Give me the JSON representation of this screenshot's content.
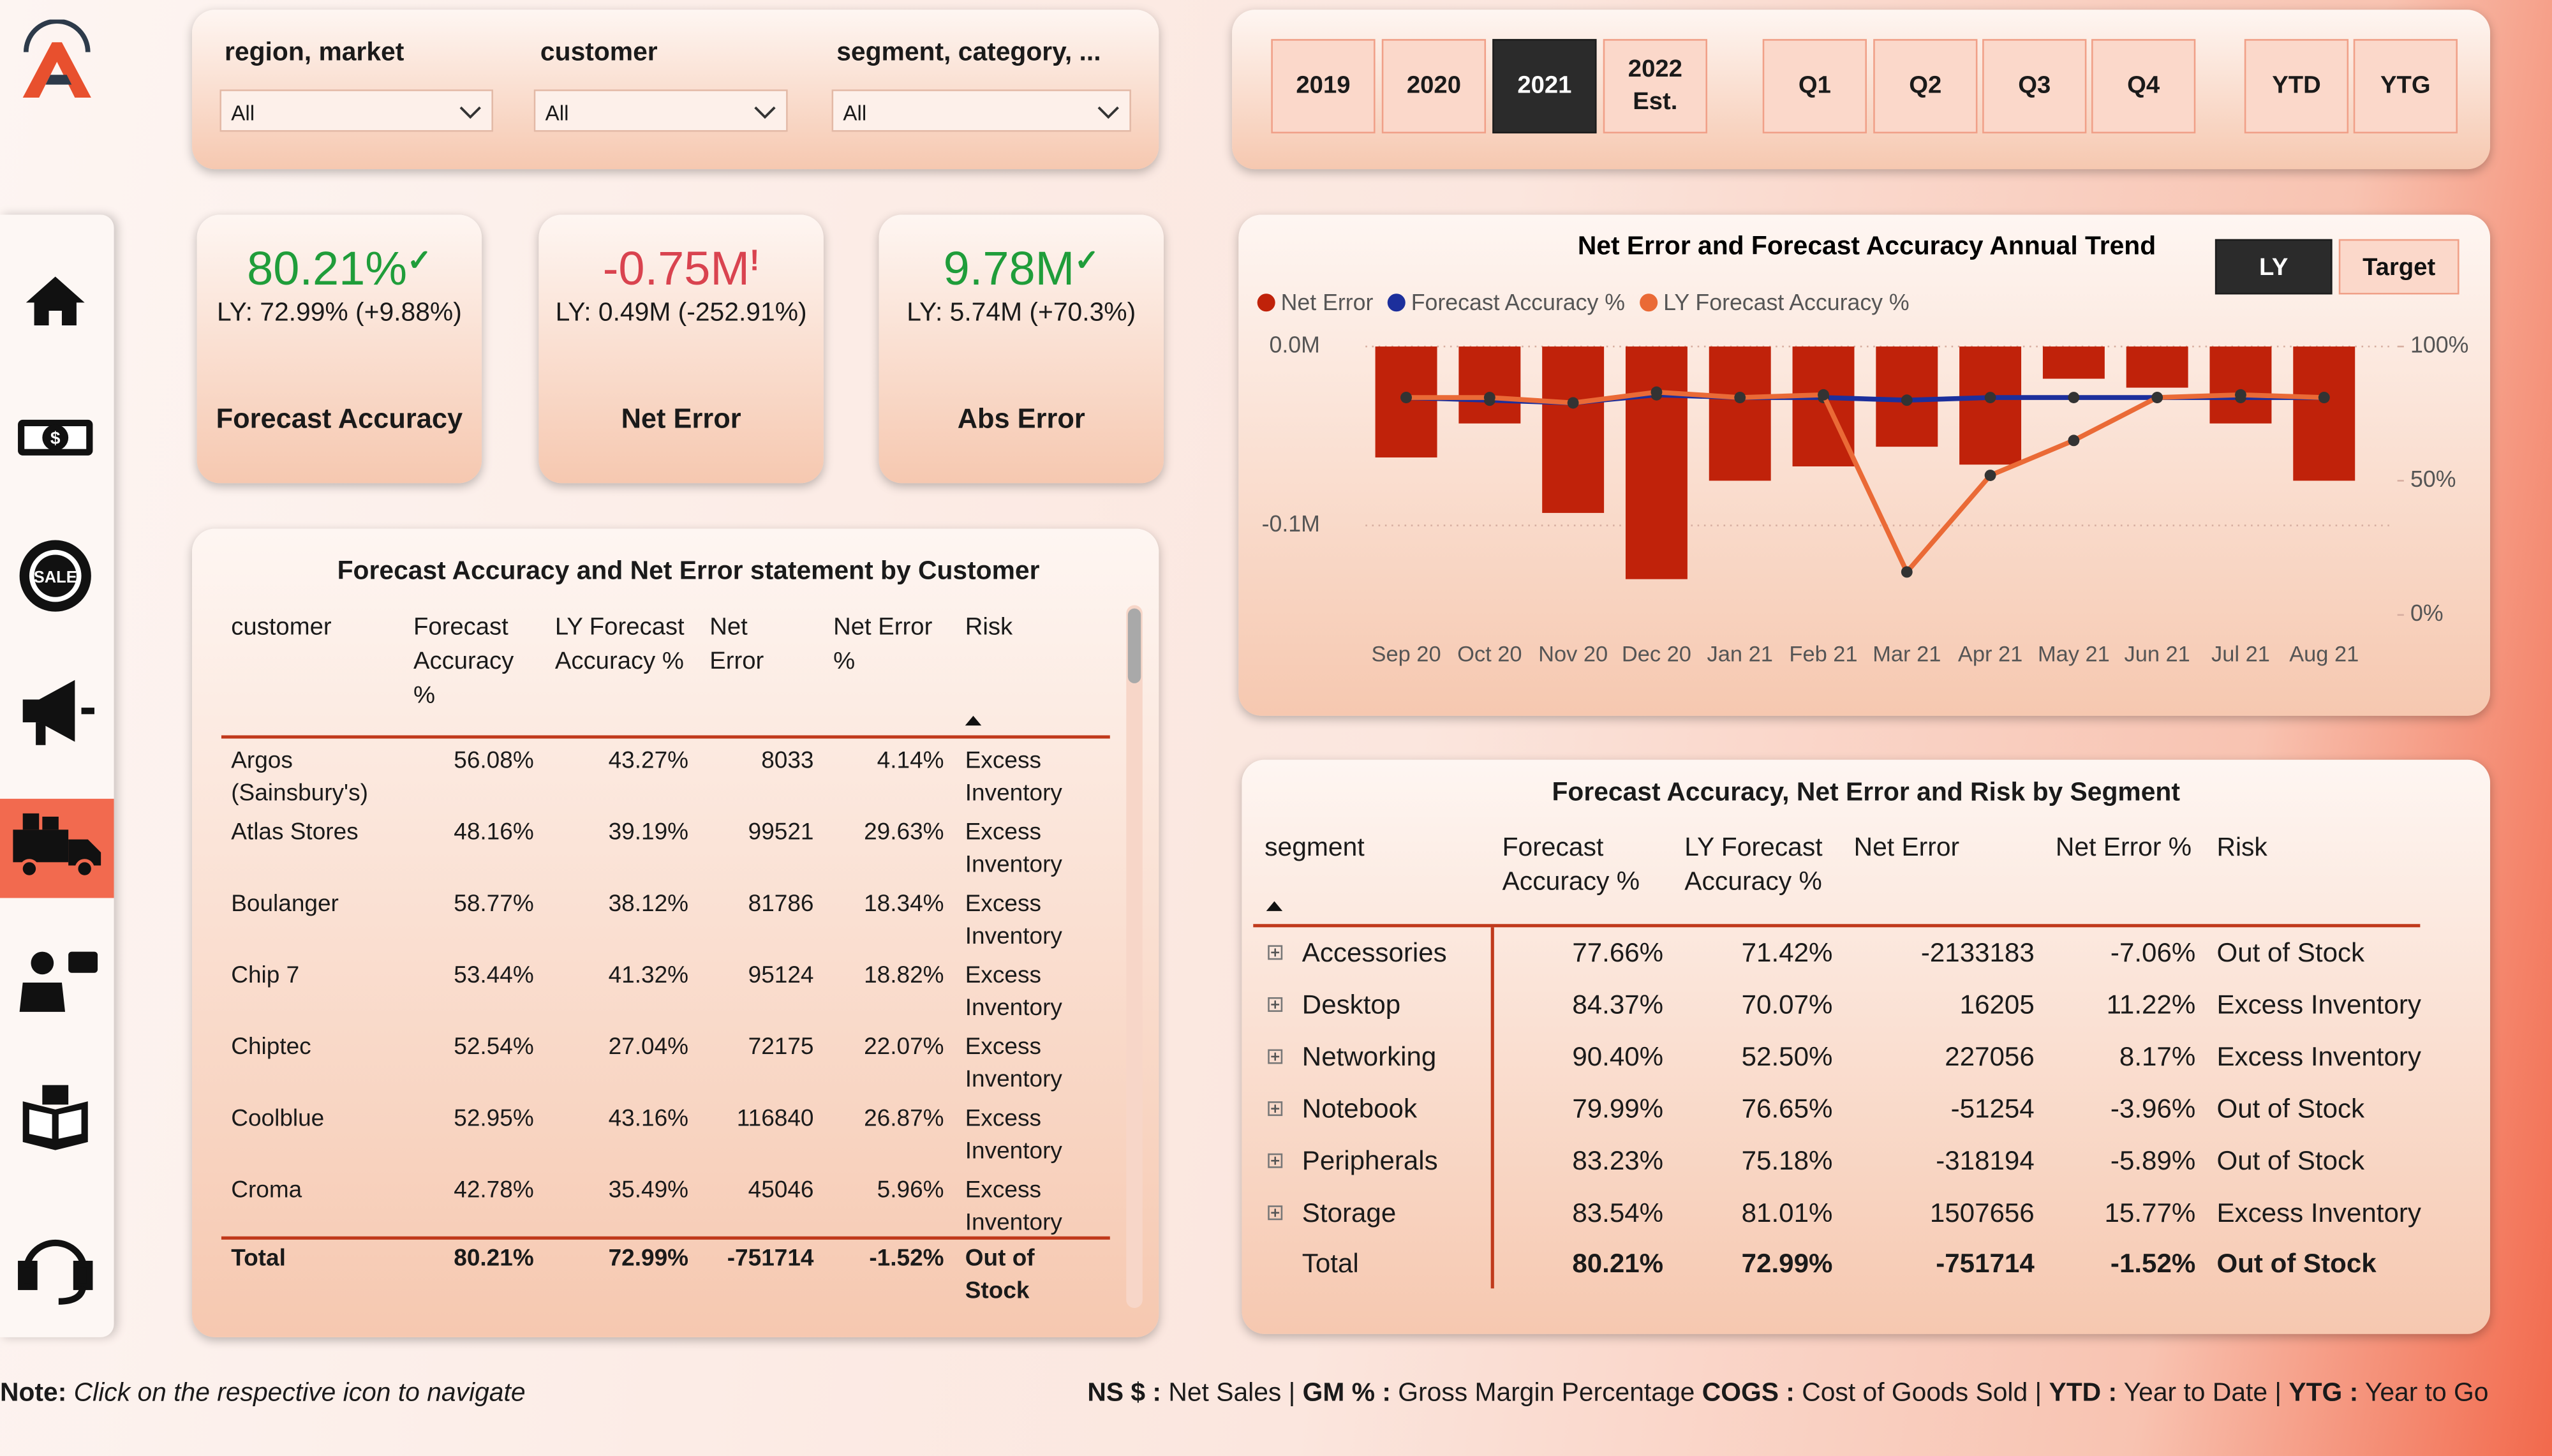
{
  "filters": [
    {
      "label": "region, market",
      "value": "All"
    },
    {
      "label": "customer",
      "value": "All"
    },
    {
      "label": "segment, category, ...",
      "value": "All"
    }
  ],
  "period_buttons": [
    {
      "label": "2019"
    },
    {
      "label": "2020"
    },
    {
      "label": "2021",
      "selected": true
    },
    {
      "label": "2022 Est."
    },
    {
      "label": "Q1"
    },
    {
      "label": "Q2"
    },
    {
      "label": "Q3"
    },
    {
      "label": "Q4"
    },
    {
      "label": "YTD"
    },
    {
      "label": "YTG"
    }
  ],
  "kpis": [
    {
      "value": "80.21%",
      "icon": "✓",
      "color": "#1f9d3a",
      "comparison": "LY: 72.99% (+9.88%)",
      "label": "Forecast Accuracy"
    },
    {
      "value": "-0.75M",
      "icon": "!",
      "color": "#d9434f",
      "comparison": "LY: 0.49M (-252.91%)",
      "label": "Net Error"
    },
    {
      "value": "9.78M",
      "icon": "✓",
      "color": "#1f9d3a",
      "comparison": "LY: 5.74M (+70.3%)",
      "label": "Abs Error"
    }
  ],
  "customer_table": {
    "title": "Forecast Accuracy and Net Error statement  by Customer",
    "columns": [
      "customer",
      "Forecast Accuracy %",
      "LY Forecast Accuracy %",
      "Net Error",
      "Net Error %",
      "Risk"
    ],
    "rows": [
      [
        "Argos (Sainsbury's)",
        "56.08%",
        "43.27%",
        "8033",
        "4.14%",
        "Excess Inventory"
      ],
      [
        "Atlas Stores",
        "48.16%",
        "39.19%",
        "99521",
        "29.63%",
        "Excess Inventory"
      ],
      [
        "Boulanger",
        "58.77%",
        "38.12%",
        "81786",
        "18.34%",
        "Excess Inventory"
      ],
      [
        "Chip 7",
        "53.44%",
        "41.32%",
        "95124",
        "18.82%",
        "Excess Inventory"
      ],
      [
        "Chiptec",
        "52.54%",
        "27.04%",
        "72175",
        "22.07%",
        "Excess Inventory"
      ],
      [
        "Coolblue",
        "52.95%",
        "43.16%",
        "116840",
        "26.87%",
        "Excess Inventory"
      ],
      [
        "Croma",
        "42.78%",
        "35.49%",
        "45046",
        "5.96%",
        "Excess Inventory"
      ]
    ],
    "total": [
      "Total",
      "80.21%",
      "72.99%",
      "-751714",
      "-1.52%",
      "Out of Stock"
    ]
  },
  "chart_toggle": [
    {
      "label": "LY",
      "selected": true
    },
    {
      "label": "Target"
    }
  ],
  "chart_data": {
    "type": "combo",
    "title": "Net Error and Forecast Accuracy Annual Trend",
    "categories": [
      "Sep 20",
      "Oct 20",
      "Nov 20",
      "Dec 20",
      "Jan 21",
      "Feb 21",
      "Mar 21",
      "Apr 21",
      "May 21",
      "Jun 21",
      "Jul 21",
      "Aug 21"
    ],
    "series": [
      {
        "name": "Net Error",
        "type": "bar",
        "color": "#c0220a",
        "values": [
          -0.062,
          -0.043,
          -0.093,
          -0.13,
          -0.075,
          -0.067,
          -0.056,
          -0.066,
          -0.018,
          -0.023,
          -0.043,
          -0.075
        ]
      },
      {
        "name": "Forecast Accuracy %",
        "type": "line",
        "axis": "y2",
        "color": "#1c2f9c",
        "values": [
          81,
          80,
          79,
          82,
          81,
          81,
          80,
          81,
          81,
          81,
          81,
          81
        ]
      },
      {
        "name": "LY Forecast Accuracy %",
        "type": "line",
        "axis": "y2",
        "color": "#ea6a36",
        "values": [
          81,
          81,
          79,
          83,
          81,
          82,
          16,
          52,
          65,
          81,
          82,
          81
        ]
      }
    ],
    "ylim": [
      -0.15,
      0
    ],
    "yticks": [
      {
        "value": 0,
        "label": "0.0M"
      },
      {
        "value": -0.1,
        "label": "-0.1M"
      }
    ],
    "y2lim": [
      0,
      100
    ],
    "y2ticks": [
      {
        "value": 100,
        "label": "100%"
      },
      {
        "value": 50,
        "label": "50%"
      },
      {
        "value": 0,
        "label": "0%"
      }
    ],
    "grid": true,
    "legend": "top-left"
  },
  "segment_table": {
    "title": "Forecast Accuracy, Net Error and Risk by Segment",
    "columns": [
      "segment",
      "Forecast Accuracy %",
      "LY Forecast Accuracy %",
      "Net Error",
      "Net Error %",
      "Risk"
    ],
    "rows": [
      [
        "Accessories",
        "77.66%",
        "71.42%",
        "-2133183",
        "-7.06%",
        "Out of Stock"
      ],
      [
        "Desktop",
        "84.37%",
        "70.07%",
        "16205",
        "11.22%",
        "Excess Inventory"
      ],
      [
        "Networking",
        "90.40%",
        "52.50%",
        "227056",
        "8.17%",
        "Excess Inventory"
      ],
      [
        "Notebook",
        "79.99%",
        "76.65%",
        "-51254",
        "-3.96%",
        "Out of Stock"
      ],
      [
        "Peripherals",
        "83.23%",
        "75.18%",
        "-318194",
        "-5.89%",
        "Out of Stock"
      ],
      [
        "Storage",
        "83.54%",
        "81.01%",
        "1507656",
        "15.77%",
        "Excess Inventory"
      ]
    ],
    "total": [
      "Total",
      "80.21%",
      "72.99%",
      "-751714",
      "-1.52%",
      "Out of Stock"
    ]
  },
  "footer": {
    "note_label": "Note:",
    "note": "Click on the respective icon to navigate",
    "legend": [
      {
        "key": "NS $ :",
        "text": "Net Sales |"
      },
      {
        "key": "GM % :",
        "text": "Gross Margin Percentage"
      },
      {
        "key": "COGS :",
        "text": "Cost of Goods Sold |"
      },
      {
        "key": "YTD :",
        "text": "Year to Date |"
      },
      {
        "key": "YTG :",
        "text": "Year to Go"
      }
    ]
  }
}
